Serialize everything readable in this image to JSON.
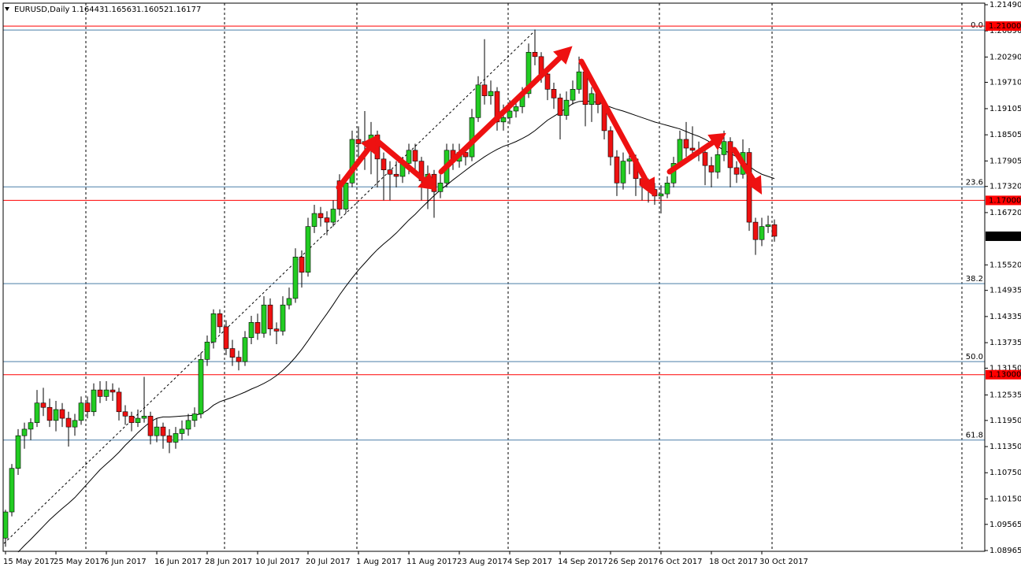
{
  "chart_data": {
    "type": "candlestick",
    "title": "EURUSD,Daily",
    "ylim": [
      1.08965,
      1.2149
    ],
    "yticks": [
      {
        "value": 1.2149,
        "label": "1.21490"
      },
      {
        "value": 1.2089,
        "label": "1.20890"
      },
      {
        "value": 1.2029,
        "label": "1.20290"
      },
      {
        "value": 1.1971,
        "label": "1.19710"
      },
      {
        "value": 1.19105,
        "label": "1.19105"
      },
      {
        "value": 1.18505,
        "label": "1.18505"
      },
      {
        "value": 1.17905,
        "label": "1.17905"
      },
      {
        "value": 1.1732,
        "label": "1.17320"
      },
      {
        "value": 1.1672,
        "label": "1.16720"
      },
      {
        "value": 1.1552,
        "label": "1.15520"
      },
      {
        "value": 1.14935,
        "label": "1.14935"
      },
      {
        "value": 1.14335,
        "label": "1.14335"
      },
      {
        "value": 1.13735,
        "label": "1.13735"
      },
      {
        "value": 1.1315,
        "label": "1.13150"
      },
      {
        "value": 1.12535,
        "label": "1.12535"
      },
      {
        "value": 1.1195,
        "label": "1.11950"
      },
      {
        "value": 1.1135,
        "label": "1.11350"
      },
      {
        "value": 1.1075,
        "label": "1.10750"
      },
      {
        "value": 1.1015,
        "label": "1.10150"
      },
      {
        "value": 1.09565,
        "label": "1.09565"
      },
      {
        "value": 1.08965,
        "label": "1.08965"
      }
    ],
    "categories": [
      "15 May 2017",
      null,
      null,
      null,
      null,
      null,
      null,
      null,
      "25 May 2017",
      null,
      null,
      null,
      null,
      null,
      null,
      null,
      "6 Jun 2017",
      null,
      null,
      null,
      null,
      null,
      null,
      null,
      "16 Jun 2017",
      null,
      null,
      null,
      null,
      null,
      null,
      null,
      "28 Jun 2017",
      null,
      null,
      null,
      null,
      null,
      null,
      null,
      "10 Jul 2017",
      null,
      null,
      null,
      null,
      null,
      null,
      null,
      "20 Jul 2017",
      null,
      null,
      null,
      null,
      null,
      null,
      null,
      "1 Aug 2017",
      null,
      null,
      null,
      null,
      null,
      null,
      null,
      "11 Aug 2017",
      null,
      null,
      null,
      null,
      null,
      null,
      null,
      "23 Aug 2017",
      null,
      null,
      null,
      null,
      null,
      null,
      null,
      "4 Sep 2017",
      null,
      null,
      null,
      null,
      null,
      null,
      null,
      "14 Sep 2017",
      null,
      null,
      null,
      null,
      null,
      null,
      null,
      "26 Sep 2017",
      null,
      null,
      null,
      null,
      null,
      null,
      null,
      "6 Oct 2017",
      null,
      null,
      null,
      null,
      null,
      null,
      null,
      "18 Oct 2017",
      null,
      null,
      null,
      null,
      null,
      null,
      null,
      "30 Oct 2017",
      null,
      null
    ],
    "candles": [
      [
        1.0925,
        1.099,
        1.0905,
        1.0985
      ],
      [
        1.0985,
        1.1095,
        1.0975,
        1.1085
      ],
      [
        1.1085,
        1.1175,
        1.107,
        1.116
      ],
      [
        1.116,
        1.119,
        1.113,
        1.1175
      ],
      [
        1.1175,
        1.12,
        1.115,
        1.119
      ],
      [
        1.119,
        1.1265,
        1.118,
        1.1235
      ],
      [
        1.1235,
        1.127,
        1.1205,
        1.1225
      ],
      [
        1.1225,
        1.1245,
        1.118,
        1.1195
      ],
      [
        1.1195,
        1.124,
        1.117,
        1.122
      ],
      [
        1.122,
        1.1235,
        1.118,
        1.12
      ],
      [
        1.12,
        1.1215,
        1.1135,
        1.118
      ],
      [
        1.118,
        1.121,
        1.116,
        1.1195
      ],
      [
        1.1195,
        1.125,
        1.1185,
        1.1235
      ],
      [
        1.1235,
        1.125,
        1.12,
        1.1215
      ],
      [
        1.1215,
        1.128,
        1.1205,
        1.1265
      ],
      [
        1.1265,
        1.1285,
        1.1235,
        1.125
      ],
      [
        1.125,
        1.1285,
        1.124,
        1.1265
      ],
      [
        1.1265,
        1.128,
        1.124,
        1.126
      ],
      [
        1.126,
        1.127,
        1.1195,
        1.1215
      ],
      [
        1.1215,
        1.123,
        1.1185,
        1.1205
      ],
      [
        1.1205,
        1.1215,
        1.117,
        1.119
      ],
      [
        1.119,
        1.122,
        1.118,
        1.12
      ],
      [
        1.12,
        1.1295,
        1.119,
        1.1205
      ],
      [
        1.1205,
        1.1215,
        1.114,
        1.116
      ],
      [
        1.116,
        1.12,
        1.1145,
        1.118
      ],
      [
        1.118,
        1.119,
        1.113,
        1.116
      ],
      [
        1.116,
        1.1175,
        1.112,
        1.1145
      ],
      [
        1.1145,
        1.118,
        1.113,
        1.1165
      ],
      [
        1.1165,
        1.1195,
        1.115,
        1.1175
      ],
      [
        1.1175,
        1.121,
        1.116,
        1.1195
      ],
      [
        1.1195,
        1.1225,
        1.118,
        1.121
      ],
      [
        1.121,
        1.135,
        1.12,
        1.1335
      ],
      [
        1.1335,
        1.139,
        1.132,
        1.1375
      ],
      [
        1.1375,
        1.145,
        1.136,
        1.144
      ],
      [
        1.144,
        1.145,
        1.1395,
        1.141
      ],
      [
        1.141,
        1.1425,
        1.1345,
        1.136
      ],
      [
        1.136,
        1.138,
        1.132,
        1.134
      ],
      [
        1.134,
        1.1355,
        1.131,
        1.133
      ],
      [
        1.133,
        1.14,
        1.132,
        1.1385
      ],
      [
        1.1385,
        1.1435,
        1.137,
        1.142
      ],
      [
        1.142,
        1.144,
        1.138,
        1.1395
      ],
      [
        1.1395,
        1.148,
        1.1385,
        1.146
      ],
      [
        1.146,
        1.1475,
        1.139,
        1.1405
      ],
      [
        1.1405,
        1.142,
        1.137,
        1.14
      ],
      [
        1.14,
        1.148,
        1.139,
        1.146
      ],
      [
        1.146,
        1.15,
        1.145,
        1.1475
      ],
      [
        1.1475,
        1.159,
        1.1465,
        1.157
      ],
      [
        1.157,
        1.1585,
        1.15,
        1.1535
      ],
      [
        1.1535,
        1.166,
        1.1525,
        1.164
      ],
      [
        1.164,
        1.169,
        1.1625,
        1.167
      ],
      [
        1.167,
        1.1685,
        1.164,
        1.166
      ],
      [
        1.166,
        1.1675,
        1.162,
        1.165
      ],
      [
        1.165,
        1.17,
        1.164,
        1.168
      ],
      [
        1.1745,
        1.176,
        1.1665,
        1.168
      ],
      [
        1.168,
        1.176,
        1.167,
        1.174
      ],
      [
        1.174,
        1.186,
        1.173,
        1.184
      ],
      [
        1.184,
        1.187,
        1.179,
        1.183
      ],
      [
        1.183,
        1.1905,
        1.177,
        1.1835
      ],
      [
        1.1835,
        1.188,
        1.176,
        1.185
      ],
      [
        1.185,
        1.186,
        1.173,
        1.1795
      ],
      [
        1.1795,
        1.181,
        1.17,
        1.177
      ],
      [
        1.177,
        1.179,
        1.17,
        1.176
      ],
      [
        1.176,
        1.179,
        1.173,
        1.1755
      ],
      [
        1.1755,
        1.18,
        1.174,
        1.1785
      ],
      [
        1.1785,
        1.183,
        1.176,
        1.1815
      ],
      [
        1.1815,
        1.183,
        1.176,
        1.179
      ],
      [
        1.179,
        1.18,
        1.17,
        1.1745
      ],
      [
        1.1745,
        1.178,
        1.168,
        1.176
      ],
      [
        1.176,
        1.177,
        1.166,
        1.172
      ],
      [
        1.172,
        1.176,
        1.1705,
        1.174
      ],
      [
        1.174,
        1.183,
        1.173,
        1.1815
      ],
      [
        1.1815,
        1.183,
        1.177,
        1.179
      ],
      [
        1.179,
        1.183,
        1.1775,
        1.181
      ],
      [
        1.181,
        1.1825,
        1.178,
        1.18
      ],
      [
        1.18,
        1.191,
        1.179,
        1.189
      ],
      [
        1.189,
        1.1985,
        1.188,
        1.1965
      ],
      [
        1.1965,
        1.207,
        1.192,
        1.194
      ],
      [
        1.194,
        1.1975,
        1.192,
        1.195
      ],
      [
        1.195,
        1.196,
        1.186,
        1.188
      ],
      [
        1.188,
        1.192,
        1.186,
        1.189
      ],
      [
        1.189,
        1.193,
        1.1875,
        1.1905
      ],
      [
        1.1905,
        1.1935,
        1.189,
        1.1915
      ],
      [
        1.1915,
        1.196,
        1.19,
        1.1945
      ],
      [
        1.1945,
        1.206,
        1.1935,
        1.204
      ],
      [
        1.204,
        1.2092,
        1.201,
        1.203
      ],
      [
        1.203,
        1.204,
        1.197,
        1.199
      ],
      [
        1.199,
        1.2,
        1.193,
        1.1955
      ],
      [
        1.1955,
        1.197,
        1.191,
        1.1935
      ],
      [
        1.1935,
        1.1945,
        1.184,
        1.1895
      ],
      [
        1.1895,
        1.195,
        1.1885,
        1.193
      ],
      [
        1.193,
        1.1975,
        1.192,
        1.1955
      ],
      [
        1.1955,
        1.203,
        1.1945,
        1.1995
      ],
      [
        1.1995,
        1.2005,
        1.187,
        1.192
      ],
      [
        1.192,
        1.196,
        1.188,
        1.1945
      ],
      [
        1.1945,
        1.195,
        1.19,
        1.192
      ],
      [
        1.192,
        1.193,
        1.184,
        1.186
      ],
      [
        1.186,
        1.187,
        1.178,
        1.18
      ],
      [
        1.18,
        1.1815,
        1.171,
        1.174
      ],
      [
        1.174,
        1.181,
        1.1725,
        1.179
      ],
      [
        1.179,
        1.182,
        1.176,
        1.1795
      ],
      [
        1.1795,
        1.1805,
        1.171,
        1.175
      ],
      [
        1.175,
        1.1765,
        1.17,
        1.1735
      ],
      [
        1.1735,
        1.175,
        1.1695,
        1.1725
      ],
      [
        1.1725,
        1.174,
        1.169,
        1.171
      ],
      [
        1.171,
        1.1735,
        1.167,
        1.1715
      ],
      [
        1.1715,
        1.1755,
        1.1705,
        1.174
      ],
      [
        1.174,
        1.18,
        1.173,
        1.1785
      ],
      [
        1.1785,
        1.186,
        1.1775,
        1.184
      ],
      [
        1.184,
        1.188,
        1.18,
        1.182
      ],
      [
        1.182,
        1.187,
        1.18,
        1.1815
      ],
      [
        1.1815,
        1.1835,
        1.179,
        1.181
      ],
      [
        1.181,
        1.1825,
        1.1735,
        1.178
      ],
      [
        1.178,
        1.18,
        1.173,
        1.1765
      ],
      [
        1.1765,
        1.182,
        1.175,
        1.1805
      ],
      [
        1.1805,
        1.186,
        1.179,
        1.1835
      ],
      [
        1.1835,
        1.1845,
        1.173,
        1.1775
      ],
      [
        1.1775,
        1.179,
        1.174,
        1.176
      ],
      [
        1.176,
        1.184,
        1.175,
        1.181
      ],
      [
        1.181,
        1.182,
        1.163,
        1.165
      ],
      [
        1.165,
        1.166,
        1.1575,
        1.161
      ],
      [
        1.161,
        1.166,
        1.1595,
        1.164
      ],
      [
        1.164,
        1.1665,
        1.1625,
        1.1644
      ],
      [
        1.16443,
        1.16563,
        1.16052,
        1.16177
      ]
    ],
    "moving_average": [
      null,
      null,
      1.0893,
      1.0908,
      1.0922,
      1.0937,
      1.0952,
      1.0967,
      1.098,
      1.0993,
      1.1005,
      1.1018,
      1.1034,
      1.105,
      1.1066,
      1.1082,
      1.1095,
      1.1108,
      1.1122,
      1.1138,
      1.1152,
      1.1167,
      1.118,
      1.1192,
      1.12,
      1.1203,
      1.1203,
      1.1204,
      1.1205,
      1.1206,
      1.1207,
      1.121,
      1.1218,
      1.123,
      1.1238,
      1.1243,
      1.1248,
      1.1254,
      1.126,
      1.1267,
      1.1273,
      1.128,
      1.1288,
      1.1298,
      1.131,
      1.1324,
      1.134,
      1.1358,
      1.1378,
      1.1399,
      1.142,
      1.144,
      1.1461,
      1.1483,
      1.1503,
      1.1522,
      1.154,
      1.1556,
      1.1572,
      1.1587,
      1.16,
      1.1612,
      1.1625,
      1.164,
      1.1655,
      1.1668,
      1.1683,
      1.1697,
      1.1711,
      1.1724,
      1.1735,
      1.1747,
      1.1758,
      1.1769,
      1.178,
      1.179,
      1.18,
      1.1809,
      1.1817,
      1.1824,
      1.1829,
      1.1835,
      1.1842,
      1.185,
      1.186,
      1.1872,
      1.1884,
      1.1893,
      1.1902,
      1.1912,
      1.1922,
      1.1927,
      1.1928,
      1.1927,
      1.1925,
      1.192,
      1.1914,
      1.1909,
      1.1905,
      1.19,
      1.1895,
      1.189,
      1.1885,
      1.188,
      1.1876,
      1.1872,
      1.1868,
      1.1864,
      1.1858,
      1.1852,
      1.1847,
      1.184,
      1.1832,
      1.1824,
      1.1815,
      1.1808,
      1.18,
      1.179,
      1.1778,
      1.1768,
      1.176,
      1.1755,
      1.175
    ],
    "levels": [
      {
        "value": 1.21,
        "label": "1.21000"
      },
      {
        "value": 1.17,
        "label": "1.17000"
      },
      {
        "value": 1.13,
        "label": "1.13000"
      }
    ],
    "level_color": "#ff0000",
    "fib_levels": [
      {
        "value": 1.2091,
        "label": "0.0"
      },
      {
        "value": 1.1731,
        "label": "23.6"
      },
      {
        "value": 1.1509,
        "label": "38.2"
      },
      {
        "value": 1.133,
        "label": "50.0"
      },
      {
        "value": 1.115,
        "label": "61.8"
      }
    ],
    "fib_color": "#4a7ea8",
    "up_color": "#22cc22",
    "down_color": "#ee1111",
    "ma_color": "#000000"
  }
}
